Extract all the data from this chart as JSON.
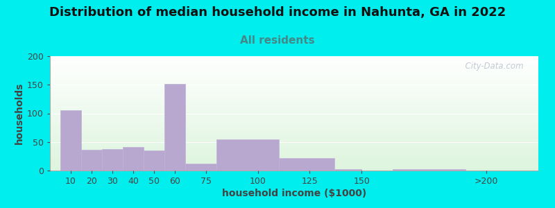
{
  "title": "Distribution of median household income in Nahunta, GA in 2022",
  "subtitle": "All residents",
  "xlabel": "household income ($1000)",
  "ylabel": "households",
  "background_color": "#00EEEE",
  "bar_color": "#b8a8d0",
  "bar_edge_color": "#c0b0d8",
  "values": [
    105,
    36,
    38,
    41,
    35,
    152,
    12,
    55,
    22,
    2,
    2
  ],
  "x_lefts": [
    5,
    15,
    25,
    35,
    45,
    55,
    65,
    80,
    110,
    137,
    165
  ],
  "bar_widths": [
    10,
    10,
    10,
    10,
    10,
    10,
    15,
    30,
    27,
    13,
    35
  ],
  "xlim": [
    0,
    235
  ],
  "ylim": [
    0,
    200
  ],
  "yticks": [
    0,
    50,
    100,
    150,
    200
  ],
  "xtick_labels": [
    "10",
    "20",
    "30",
    "40",
    "50",
    "60",
    "75",
    "100",
    "125",
    "150",
    ">200"
  ],
  "xtick_positions": [
    10,
    20,
    30,
    40,
    50,
    60,
    75,
    100,
    125,
    150,
    210
  ],
  "watermark": "  City-Data.com",
  "title_fontsize": 13,
  "subtitle_fontsize": 11,
  "axis_label_fontsize": 10,
  "subtitle_color": "#448888",
  "title_color": "#111111",
  "label_color": "#444444"
}
